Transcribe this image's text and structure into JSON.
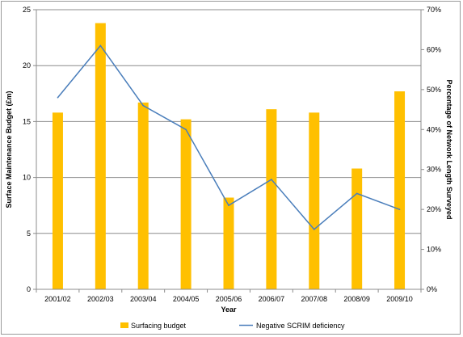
{
  "chart_data": {
    "type": "bar",
    "categories": [
      "2001/02",
      "2002/03",
      "2003/04",
      "2004/05",
      "2005/06",
      "2006/07",
      "2007/08",
      "2008/09",
      "2009/10"
    ],
    "xlabel": "Year",
    "ylabel": "Surface Maintenance Budget  (£m)",
    "y2label": "Percentage of Network Length Surveyed",
    "ylim": [
      0,
      25
    ],
    "y2lim": [
      0,
      0.7
    ],
    "yticks": [
      "0",
      "5",
      "10",
      "15",
      "20",
      "25"
    ],
    "y2ticks": [
      "0%",
      "10%",
      "20%",
      "30%",
      "40%",
      "50%",
      "60%",
      "70%"
    ],
    "grid": true,
    "legend_position": "bottom",
    "series": [
      {
        "name": "Surfacing budget",
        "type": "bar",
        "axis": "left",
        "color": "#ffc000",
        "values": [
          15.8,
          23.8,
          16.7,
          15.2,
          8.2,
          16.1,
          15.8,
          10.8,
          17.7
        ]
      },
      {
        "name": "Negative SCRIM deficiency",
        "type": "line",
        "axis": "right",
        "color": "#4a7ebb",
        "values": [
          0.48,
          0.61,
          0.46,
          0.4,
          0.21,
          0.275,
          0.15,
          0.24,
          0.2
        ]
      }
    ]
  }
}
